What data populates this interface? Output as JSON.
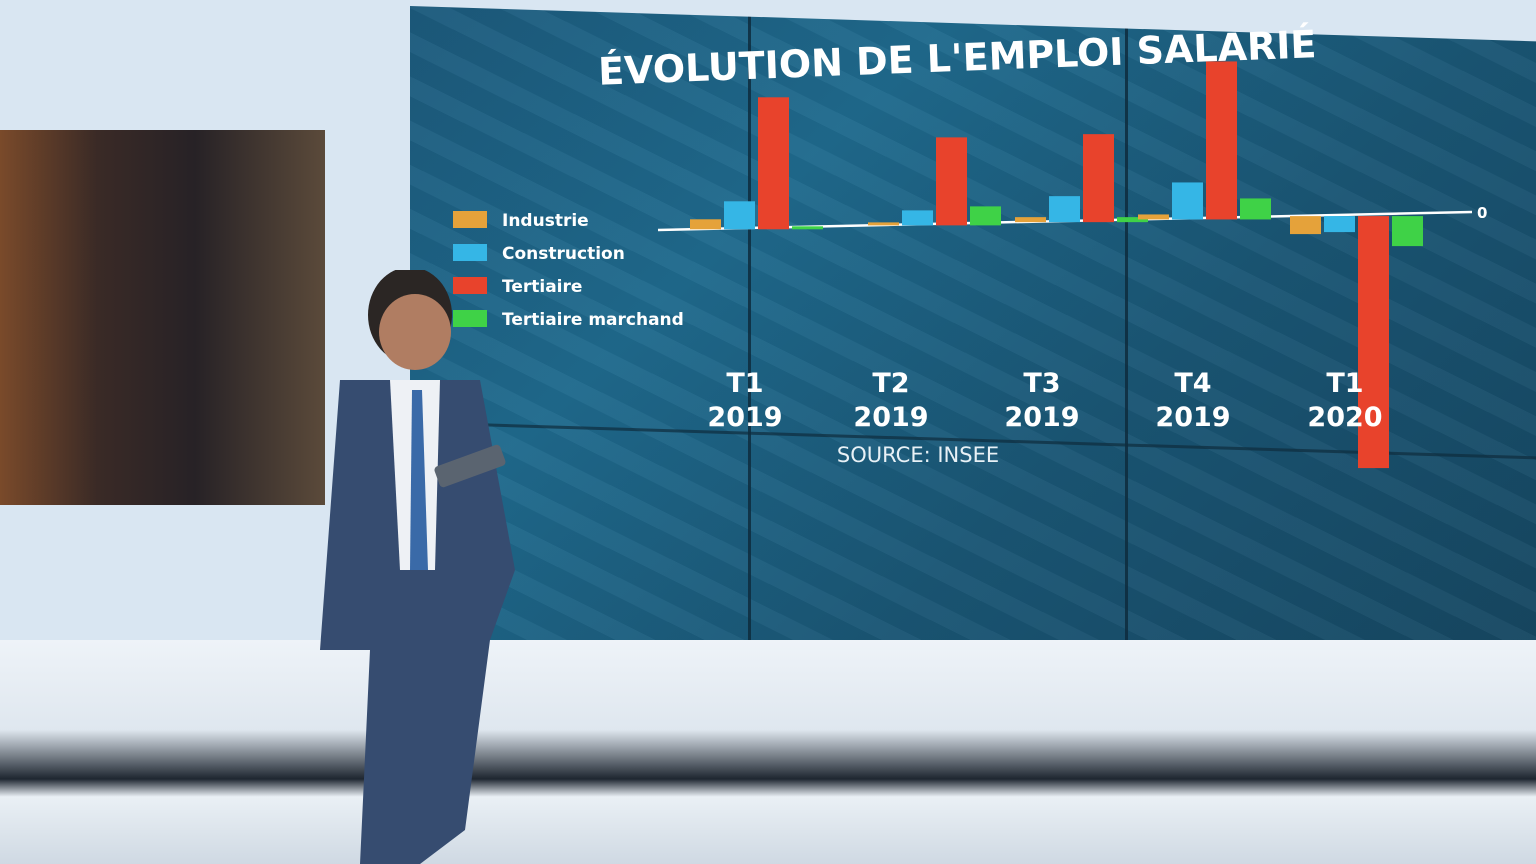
{
  "chart_data": {
    "type": "bar",
    "title": "ÉVOLUTION DE L'EMPLOI SALARIÉ",
    "categories": [
      {
        "quarter": "T1",
        "year": "2019"
      },
      {
        "quarter": "T2",
        "year": "2019"
      },
      {
        "quarter": "T3",
        "year": "2019"
      },
      {
        "quarter": "T4",
        "year": "2019"
      },
      {
        "quarter": "T1",
        "year": "2020"
      }
    ],
    "series": [
      {
        "name": "Industrie",
        "color": "#e5a23a",
        "values": [
          10,
          3,
          5,
          5,
          -18
        ]
      },
      {
        "name": "Construction",
        "color": "#35b6e6",
        "values": [
          28,
          15,
          26,
          37,
          -16
        ]
      },
      {
        "name": "Tertiaire",
        "color": "#e8432c",
        "values": [
          132,
          88,
          88,
          158,
          -252
        ]
      },
      {
        "name": "Tertiaire marchand",
        "color": "#3fd247",
        "values": [
          3,
          19,
          5,
          21,
          -30
        ]
      }
    ],
    "zero_label": "0",
    "source": "SOURCE: INSEE",
    "legend_position": "left"
  }
}
